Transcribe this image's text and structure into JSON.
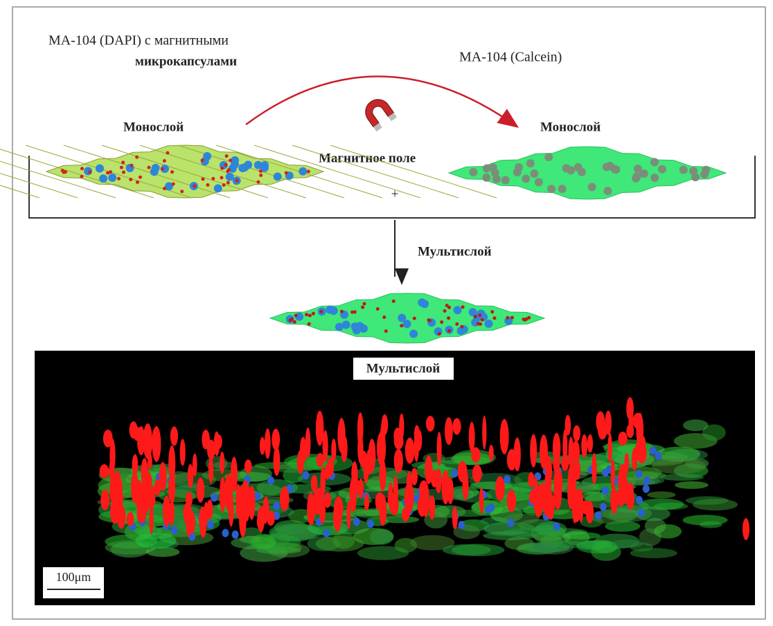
{
  "left_cells": {
    "title_line1": "MA-104 (DAPI) с магнитными",
    "title_line2": "микрокапсулами",
    "layer": "Монослой"
  },
  "right_cells": {
    "title": "MA-104 (Calcein)",
    "layer": "Монослой"
  },
  "magnet": {
    "label": "Магнитное поле",
    "plus": "+"
  },
  "result": {
    "label": "Мультислой"
  },
  "image": {
    "label": "Мультислой",
    "scale_bar": "100μm"
  }
}
